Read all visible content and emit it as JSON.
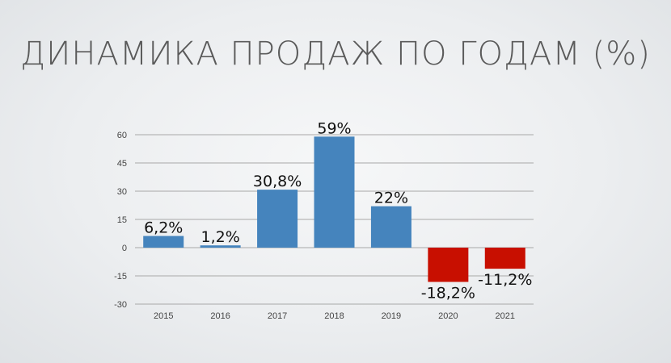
{
  "chart_data": {
    "type": "bar",
    "title": "ДИНАМИКА ПРОДАЖ ПО ГОДАМ (%)",
    "xlabel": "",
    "ylabel": "",
    "categories": [
      "2015",
      "2016",
      "2017",
      "2018",
      "2019",
      "2020",
      "2021"
    ],
    "values": [
      6.2,
      1.2,
      30.8,
      59,
      22,
      -18.2,
      -11.2
    ],
    "data_labels": [
      "6,2%",
      "1,2%",
      "30,8%",
      "59%",
      "22%",
      "-18,2%",
      "-11,2%"
    ],
    "ylim": [
      -30,
      60
    ],
    "yticks": [
      60,
      45,
      30,
      15,
      0,
      -15,
      -30
    ],
    "grid": true,
    "legend": "none",
    "colors": {
      "positive": "#4584bd",
      "negative": "#c80f00",
      "grid": "#a8a8a8"
    }
  }
}
